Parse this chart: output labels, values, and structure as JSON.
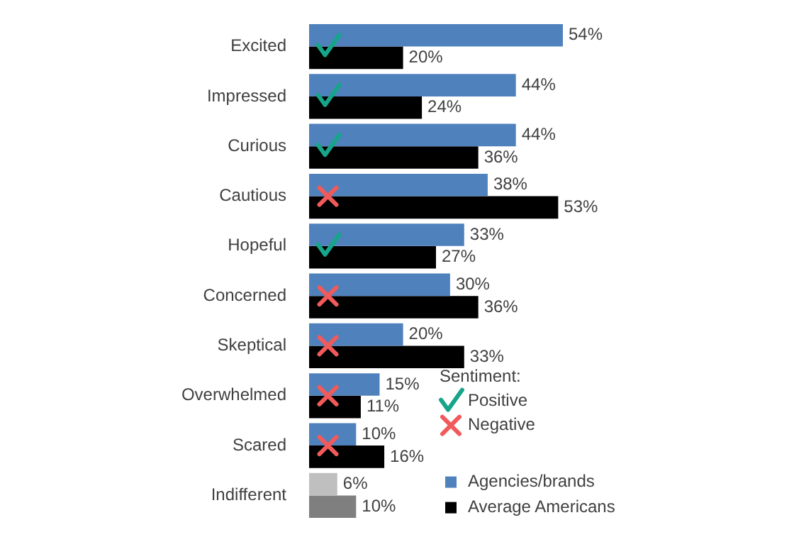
{
  "chart_data": {
    "type": "bar",
    "orientation": "horizontal",
    "categories": [
      "Excited",
      "Impressed",
      "Curious",
      "Cautious",
      "Hopeful",
      "Concerned",
      "Skeptical",
      "Overwhelmed",
      "Scared",
      "Indifferent"
    ],
    "series": [
      {
        "name": "Agencies/brands",
        "color": "#4f81bd",
        "colors": [
          "#4f81bd",
          "#4f81bd",
          "#4f81bd",
          "#4f81bd",
          "#4f81bd",
          "#4f81bd",
          "#4f81bd",
          "#4f81bd",
          "#4f81bd",
          "#bfbfbf"
        ],
        "values": [
          54,
          44,
          44,
          38,
          33,
          30,
          20,
          15,
          10,
          6
        ],
        "value_labels": [
          "54%",
          "44%",
          "44%",
          "38%",
          "33%",
          "30%",
          "20%",
          "15%",
          "10%",
          "6%"
        ]
      },
      {
        "name": "Average Americans",
        "color": "#000000",
        "colors": [
          "#000000",
          "#000000",
          "#000000",
          "#000000",
          "#000000",
          "#000000",
          "#000000",
          "#000000",
          "#000000",
          "#7f7f7f"
        ],
        "values": [
          20,
          24,
          36,
          53,
          27,
          36,
          33,
          11,
          16,
          10
        ],
        "value_labels": [
          "20%",
          "24%",
          "36%",
          "53%",
          "27%",
          "36%",
          "33%",
          "11%",
          "16%",
          "10%"
        ]
      },
      {
        "name": "Positive",
        "type": "scatter",
        "color": "#17a589",
        "x": [
          "Excited",
          "Impressed",
          "Curious",
          "Cautious",
          "Hopeful",
          "Concerned",
          "Skeptical",
          "Overwhelmed",
          "Scared",
          "Indifferent"
        ],
        "values": [
          4,
          4,
          4,
          null,
          4,
          null,
          null,
          null,
          null,
          null
        ]
      },
      {
        "name": "Negative",
        "type": "scatter",
        "marker": "cross",
        "color": "#f05a5a",
        "x": [
          "Excited",
          "Impressed",
          "Curious",
          "Cautious",
          "Hopeful",
          "Concerned",
          "Skeptical",
          "Overwhelmed",
          "Scared",
          "Indifferent"
        ],
        "values": [
          null,
          null,
          null,
          4,
          null,
          4,
          4,
          4,
          4,
          null
        ]
      }
    ],
    "legend_title": "Sentiment:",
    "legend": "bottom right",
    "tick_labels": "y"
  }
}
